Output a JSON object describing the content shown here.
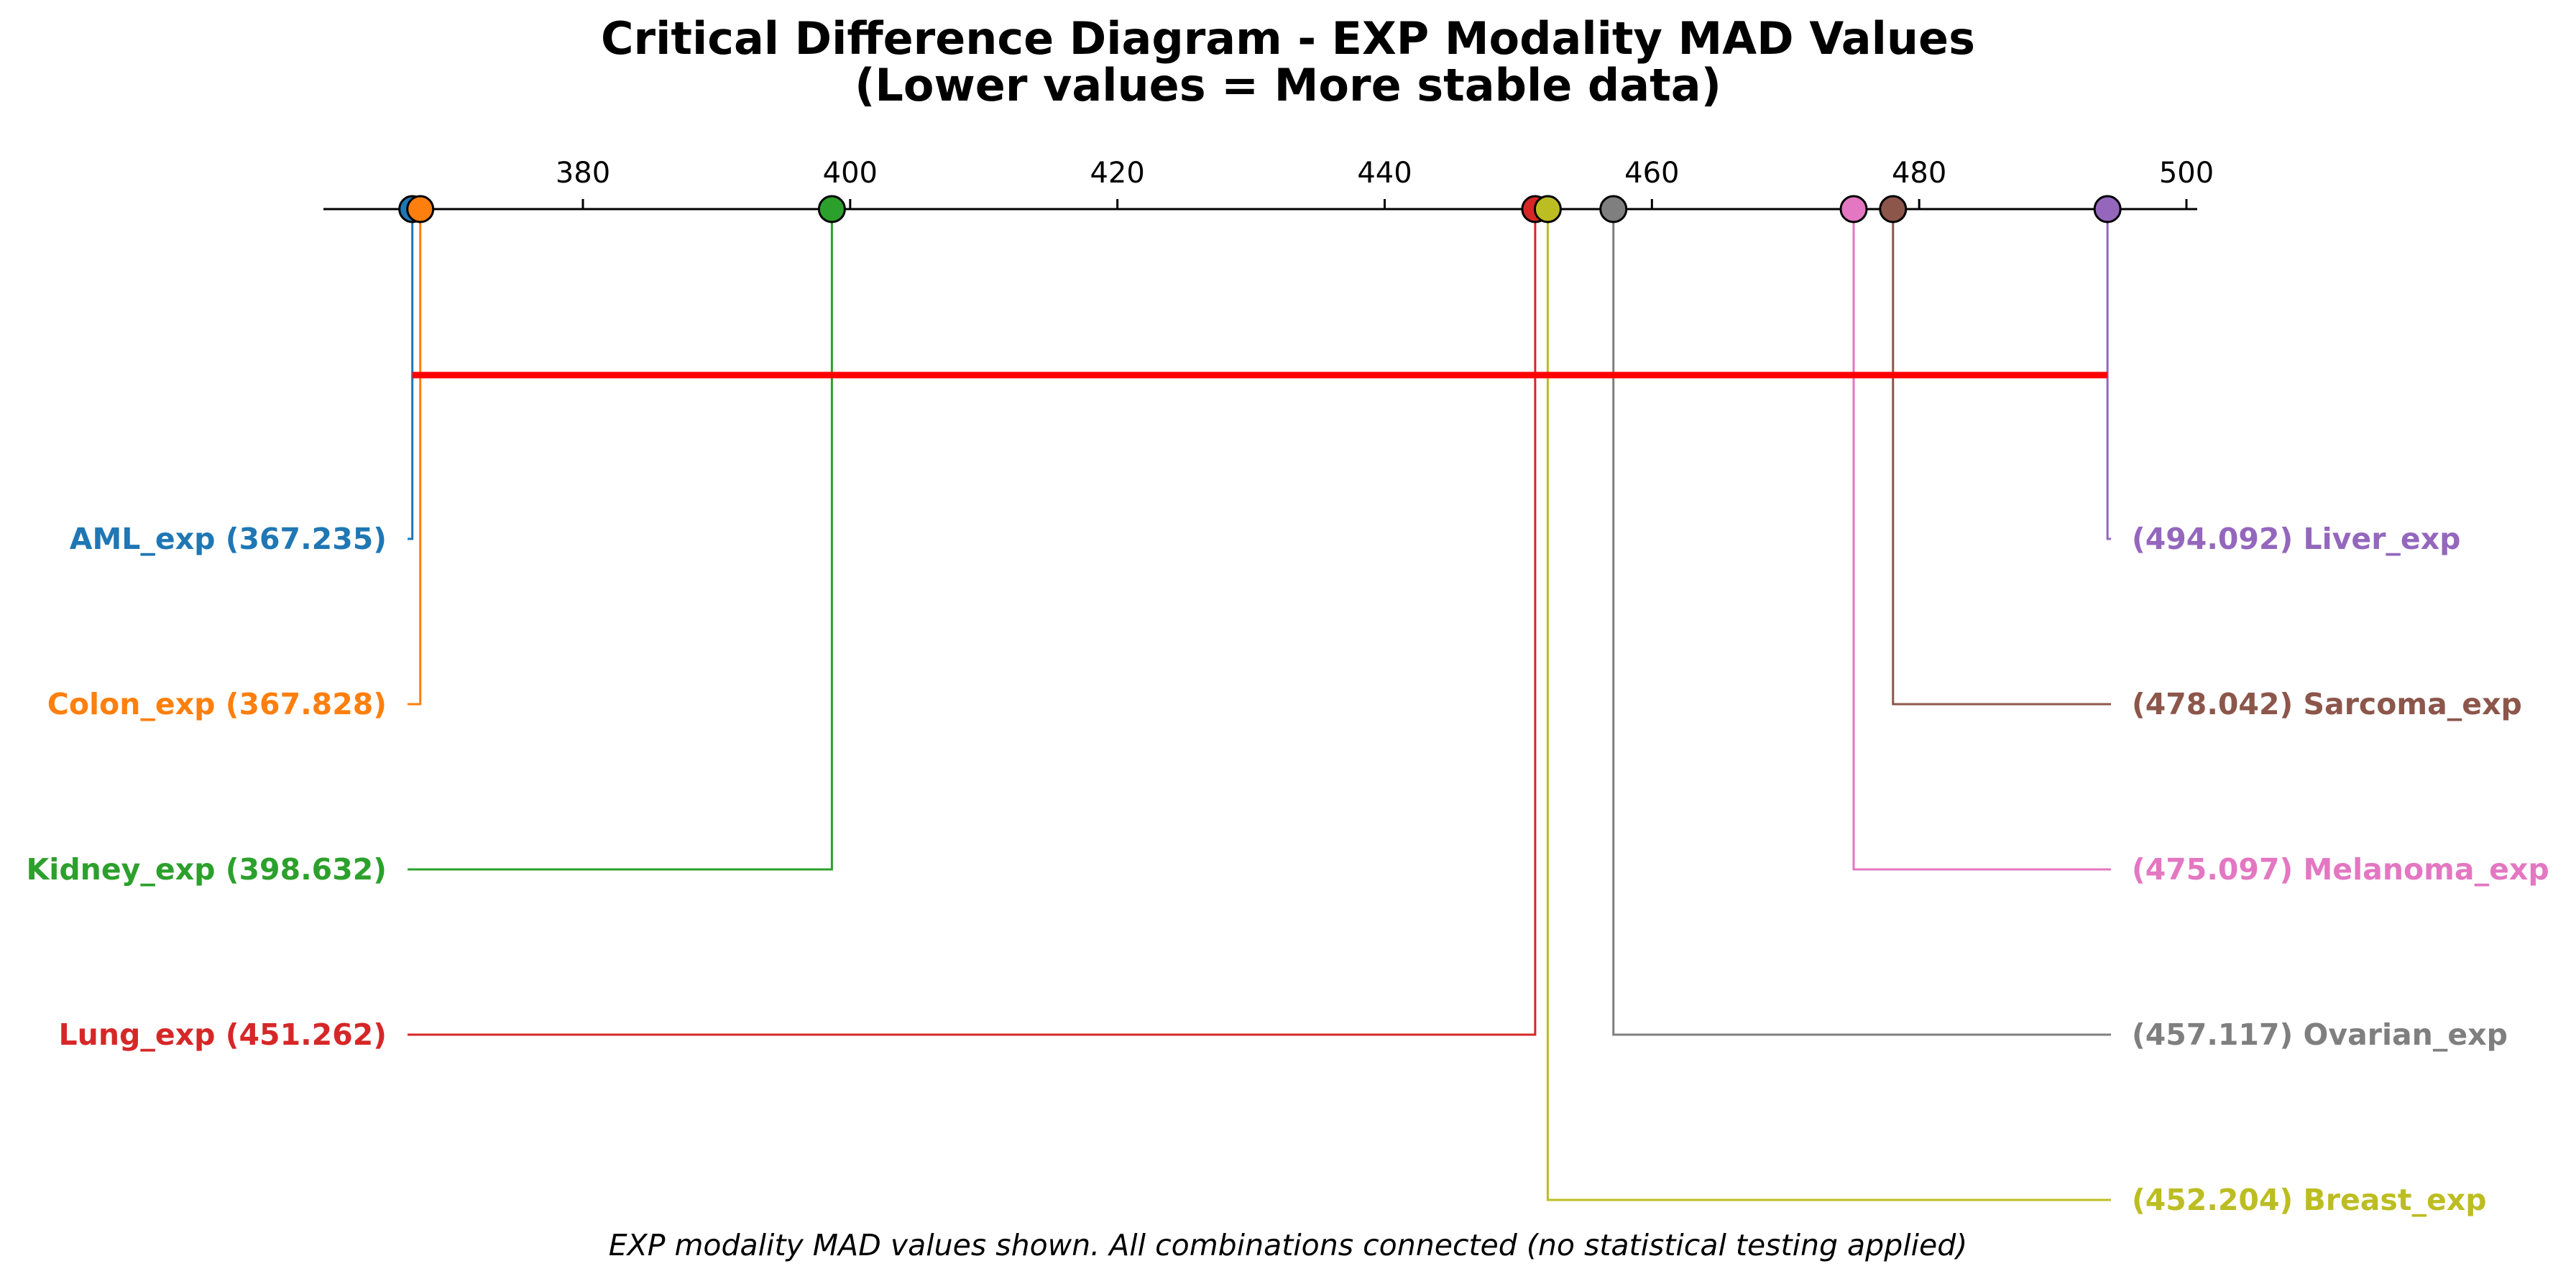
{
  "chart_data": {
    "type": "critical-difference",
    "title_line1": "Critical Difference Diagram - EXP Modality MAD Values",
    "title_line2": "(Lower values = More stable data)",
    "caption": "EXP modality MAD values shown. All combinations connected (no statistical testing applied)",
    "axis": {
      "min": 360,
      "max": 502,
      "ticks": [
        380,
        400,
        420,
        440,
        460,
        480,
        500
      ]
    },
    "clique_color": "#ff0000",
    "methods": [
      {
        "name": "AML_exp",
        "value": 367.235,
        "color": "#1f77b4",
        "side": "left",
        "label": "AML_exp (367.235)"
      },
      {
        "name": "Colon_exp",
        "value": 367.828,
        "color": "#ff7f0e",
        "side": "left",
        "label": "Colon_exp (367.828)"
      },
      {
        "name": "Kidney_exp",
        "value": 398.632,
        "color": "#2ca02c",
        "side": "left",
        "label": "Kidney_exp (398.632)"
      },
      {
        "name": "Lung_exp",
        "value": 451.262,
        "color": "#d62728",
        "side": "left",
        "label": "Lung_exp (451.262)"
      },
      {
        "name": "Liver_exp",
        "value": 494.092,
        "color": "#9467bd",
        "side": "right",
        "label": "(494.092) Liver_exp"
      },
      {
        "name": "Sarcoma_exp",
        "value": 478.042,
        "color": "#8c564b",
        "side": "right",
        "label": "(478.042) Sarcoma_exp"
      },
      {
        "name": "Melanoma_exp",
        "value": 475.097,
        "color": "#e377c2",
        "side": "right",
        "label": "(475.097) Melanoma_exp"
      },
      {
        "name": "Ovarian_exp",
        "value": 457.117,
        "color": "#7f7f7f",
        "side": "right",
        "label": "(457.117) Ovarian_exp"
      },
      {
        "name": "Breast_exp",
        "value": 452.204,
        "color": "#bcbd22",
        "side": "right",
        "label": "(452.204) Breast_exp"
      }
    ]
  }
}
